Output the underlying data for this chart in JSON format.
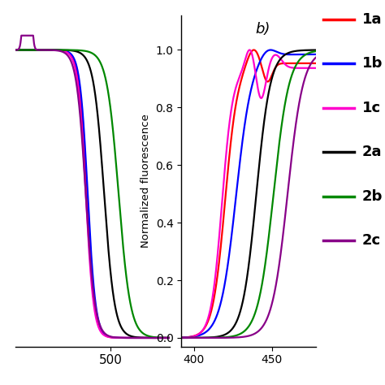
{
  "title_b": "b)",
  "ylabel_b": "Normalized fluorescence",
  "legend_labels": [
    "1a",
    "1b",
    "1c",
    "2a",
    "2b",
    "2c"
  ],
  "legend_colors": [
    "#ff0000",
    "#0000ff",
    "#ff00cc",
    "#000000",
    "#008800",
    "#880088"
  ],
  "panel_a": {
    "xlim": [
      355,
      590
    ],
    "ylim": [
      -0.03,
      1.12
    ],
    "xticks": [
      500
    ],
    "yticks": []
  },
  "panel_b": {
    "xlim": [
      392,
      478
    ],
    "ylim": [
      -0.03,
      1.12
    ],
    "xticks": [
      400,
      450
    ],
    "yticks": [
      0.0,
      0.2,
      0.4,
      0.6,
      0.8,
      1.0
    ]
  }
}
